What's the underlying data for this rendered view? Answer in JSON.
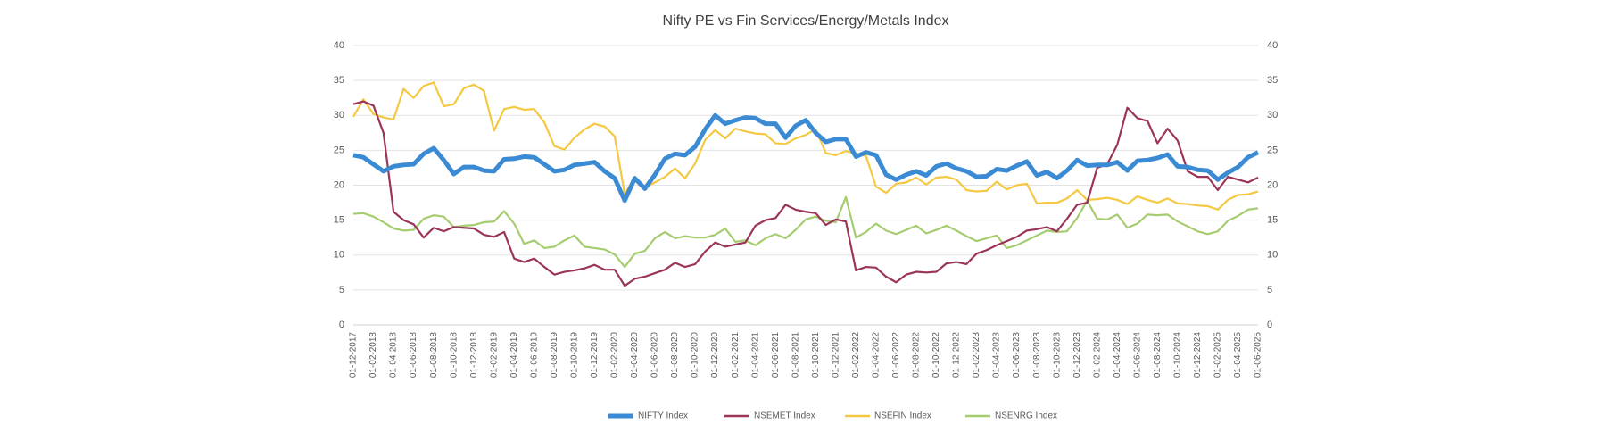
{
  "chart_data": {
    "type": "line",
    "title": "Nifty PE vs Fin Services/Energy/Metals Index",
    "categories": [
      "01-12-2017",
      null,
      "01-02-2018",
      null,
      "01-04-2018",
      null,
      "01-06-2018",
      null,
      "01-08-2018",
      null,
      "01-10-2018",
      null,
      "01-12-2018",
      null,
      "01-02-2019",
      null,
      "01-04-2019",
      null,
      "01-06-2019",
      null,
      "01-08-2019",
      null,
      "01-10-2019",
      null,
      "01-12-2019",
      null,
      "01-02-2020",
      null,
      "01-04-2020",
      null,
      "01-06-2020",
      null,
      "01-08-2020",
      null,
      "01-10-2020",
      null,
      "01-12-2020",
      null,
      "01-02-2021",
      null,
      "01-04-2021",
      null,
      "01-06-2021",
      null,
      "01-08-2021",
      null,
      "01-10-2021",
      null,
      "01-12-2021",
      null,
      "01-02-2022",
      null,
      "01-04-2022",
      null,
      "01-06-2022",
      null,
      "01-08-2022",
      null,
      "01-10-2022",
      null,
      "01-12-2022",
      null,
      "01-02-2023",
      null,
      "01-04-2023",
      null,
      "01-06-2023",
      null,
      "01-08-2023",
      null,
      "01-10-2023",
      null,
      "01-12-2023",
      null,
      "01-02-2024",
      null,
      "01-04-2024",
      null,
      "01-06-2024",
      null,
      "01-08-2024",
      null,
      "01-10-2024",
      null,
      "01-12-2024",
      null,
      "01-02-2025",
      null,
      "01-04-2025",
      null,
      "01-06-2025"
    ],
    "series": [
      {
        "name": "NIFTY Index",
        "color": "#3b8ad4",
        "values": [
          24.3,
          24,
          23,
          22,
          22.7,
          22.9,
          23,
          24.5,
          25.3,
          23.6,
          21.6,
          22.6,
          22.6,
          22.1,
          22,
          23.7,
          23.8,
          24.1,
          24,
          23,
          22,
          22.2,
          22.9,
          23.1,
          23.3,
          22,
          21,
          17.8,
          21,
          19.5,
          21.5,
          23.8,
          24.5,
          24.3,
          25.5,
          28,
          30,
          28.8,
          29.3,
          29.7,
          29.6,
          28.8,
          28.8,
          26.8,
          28.5,
          29.3,
          27.5,
          26.2,
          26.6,
          26.6,
          24.1,
          24.7,
          24.3,
          21.5,
          20.8,
          21.5,
          22,
          21.4,
          22.7,
          23.1,
          22.4,
          22,
          21.2,
          21.3,
          22.3,
          22.1,
          22.8,
          23.4,
          21.4,
          21.9,
          21,
          22.1,
          23.6,
          22.8,
          22.9,
          22.9,
          23.3,
          22.1,
          23.5,
          23.6,
          23.9,
          24.4,
          22.7,
          22.6,
          22.2,
          22.1,
          20.8,
          21.8,
          22.6,
          24,
          24.7
        ]
      },
      {
        "name": "NSEMET Index",
        "color": "#9b3558",
        "values": [
          31.6,
          32,
          31.4,
          27.5,
          16.2,
          15,
          14.4,
          12.5,
          13.9,
          13.4,
          14,
          13.9,
          13.8,
          12.9,
          12.6,
          13.3,
          9.5,
          9,
          9.5,
          8.3,
          7.2,
          7.6,
          7.8,
          8.1,
          8.6,
          7.9,
          7.9,
          5.6,
          6.6,
          6.9,
          7.4,
          7.9,
          8.9,
          8.3,
          8.7,
          10.5,
          11.8,
          11.2,
          11.5,
          11.8,
          14.2,
          15,
          15.3,
          17.2,
          16.5,
          16.2,
          16,
          14.3,
          15.1,
          14.8,
          7.8,
          8.3,
          8.2,
          6.9,
          6.1,
          7.2,
          7.6,
          7.5,
          7.6,
          8.8,
          9,
          8.7,
          10.2,
          10.7,
          11.4,
          12,
          12.6,
          13.5,
          13.7,
          14,
          13.4,
          15.2,
          17.2,
          17.5,
          22.5,
          23,
          25.8,
          31.1,
          29.6,
          29.2,
          26,
          28.1,
          26.4,
          22,
          21.2,
          21.2,
          19.3,
          21.2,
          20.8,
          20.4,
          21.1
        ]
      },
      {
        "name": "NSEFIN Index",
        "color": "#f5c842",
        "values": [
          29.8,
          32.3,
          30.2,
          29.7,
          29.4,
          33.8,
          32.5,
          34.2,
          34.7,
          31.3,
          31.6,
          33.9,
          34.4,
          33.5,
          27.8,
          30.9,
          31.2,
          30.8,
          30.9,
          29,
          25.6,
          25.1,
          26.8,
          28,
          28.8,
          28.4,
          27,
          18.7,
          21.2,
          19.7,
          20.4,
          21.2,
          22.4,
          21,
          23.1,
          26.5,
          27.9,
          26.7,
          28.1,
          27.7,
          27.4,
          27.3,
          26,
          25.9,
          26.7,
          27.2,
          28,
          24.6,
          24.3,
          24.9,
          24.5,
          24.2,
          19.8,
          18.9,
          20.2,
          20.4,
          21.1,
          20.1,
          21.1,
          21.2,
          20.8,
          19.3,
          19.1,
          19.2,
          20.5,
          19.4,
          20,
          20.2,
          17.4,
          17.5,
          17.5,
          18.1,
          19.3,
          17.9,
          18,
          18.2,
          17.9,
          17.3,
          18.4,
          17.9,
          17.5,
          18.1,
          17.4,
          17.3,
          17.1,
          17,
          16.5,
          17.9,
          18.6,
          18.7,
          19.1
        ]
      },
      {
        "name": "NSENRG Index",
        "color": "#a6cc70",
        "values": [
          15.9,
          16,
          15.5,
          14.7,
          13.8,
          13.5,
          13.6,
          15.2,
          15.7,
          15.5,
          14,
          14.2,
          14.3,
          14.7,
          14.8,
          16.3,
          14.5,
          11.6,
          12.1,
          11,
          11.2,
          12.1,
          12.8,
          11.2,
          11,
          10.8,
          10.1,
          8.3,
          10.2,
          10.6,
          12.4,
          13.3,
          12.4,
          12.7,
          12.5,
          12.5,
          12.9,
          13.8,
          11.9,
          12.1,
          11.4,
          12.4,
          13,
          12.4,
          13.6,
          15.1,
          15.5,
          14.9,
          14.7,
          18.3,
          12.5,
          13.3,
          14.5,
          13.5,
          13,
          13.6,
          14.2,
          13.1,
          13.6,
          14.2,
          13.5,
          12.7,
          12,
          12.4,
          12.8,
          11,
          11.4,
          12.1,
          12.8,
          13.5,
          13.3,
          13.4,
          15.3,
          17.8,
          15.2,
          15.1,
          15.8,
          13.9,
          14.5,
          15.8,
          15.7,
          15.8,
          14.8,
          14.1,
          13.4,
          13,
          13.4,
          14.9,
          15.6,
          16.5,
          16.7
        ]
      }
    ],
    "ylim": [
      0,
      40
    ],
    "yticks": [
      0,
      5,
      10,
      15,
      20,
      25,
      30,
      35,
      40
    ],
    "y2lim": [
      0,
      40
    ],
    "y2ticks": [
      0,
      5,
      10,
      15,
      20,
      25,
      30,
      35,
      40
    ],
    "grid": true,
    "legend": "bottom"
  }
}
